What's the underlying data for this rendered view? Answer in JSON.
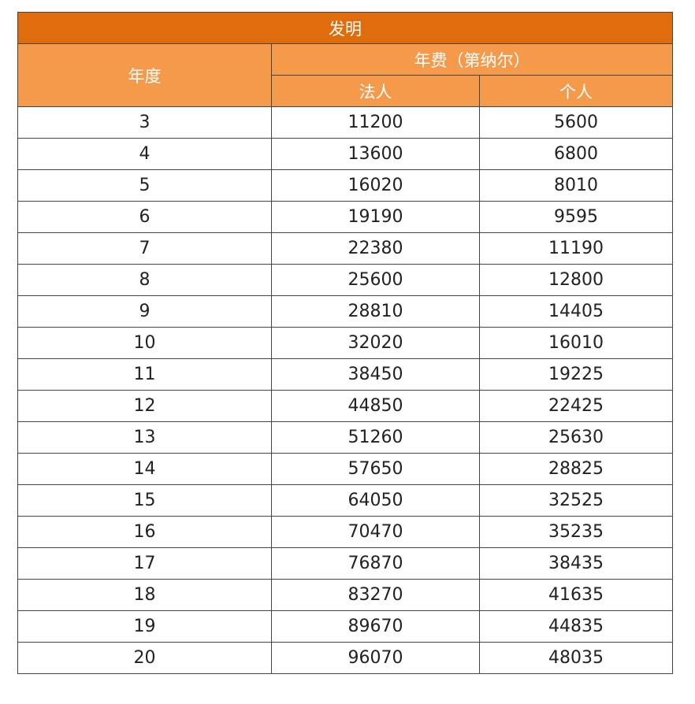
{
  "table": {
    "title": "发明",
    "header": {
      "year_label": "年度",
      "fee_group_label": "年费（第纳尔）",
      "legal_label": "法人",
      "individual_label": "个人"
    },
    "rows": [
      {
        "year": "3",
        "legal": "11200",
        "individual": "5600"
      },
      {
        "year": "4",
        "legal": "13600",
        "individual": "6800"
      },
      {
        "year": "5",
        "legal": "16020",
        "individual": "8010"
      },
      {
        "year": "6",
        "legal": "19190",
        "individual": "9595"
      },
      {
        "year": "7",
        "legal": "22380",
        "individual": "11190"
      },
      {
        "year": "8",
        "legal": "25600",
        "individual": "12800"
      },
      {
        "year": "9",
        "legal": "28810",
        "individual": "14405"
      },
      {
        "year": "10",
        "legal": "32020",
        "individual": "16010"
      },
      {
        "year": "11",
        "legal": "38450",
        "individual": "19225"
      },
      {
        "year": "12",
        "legal": "44850",
        "individual": "22425"
      },
      {
        "year": "13",
        "legal": "51260",
        "individual": "25630"
      },
      {
        "year": "14",
        "legal": "57650",
        "individual": "28825"
      },
      {
        "year": "15",
        "legal": "64050",
        "individual": "32525"
      },
      {
        "year": "16",
        "legal": "70470",
        "individual": "35235"
      },
      {
        "year": "17",
        "legal": "76870",
        "individual": "38435"
      },
      {
        "year": "18",
        "legal": "83270",
        "individual": "41635"
      },
      {
        "year": "19",
        "legal": "89670",
        "individual": "44835"
      },
      {
        "year": "20",
        "legal": "96070",
        "individual": "48035"
      }
    ]
  },
  "colors": {
    "title_bg": "#e06c0b",
    "header_bg": "#f5994a",
    "header_text": "#ffffff",
    "border": "#444444"
  }
}
